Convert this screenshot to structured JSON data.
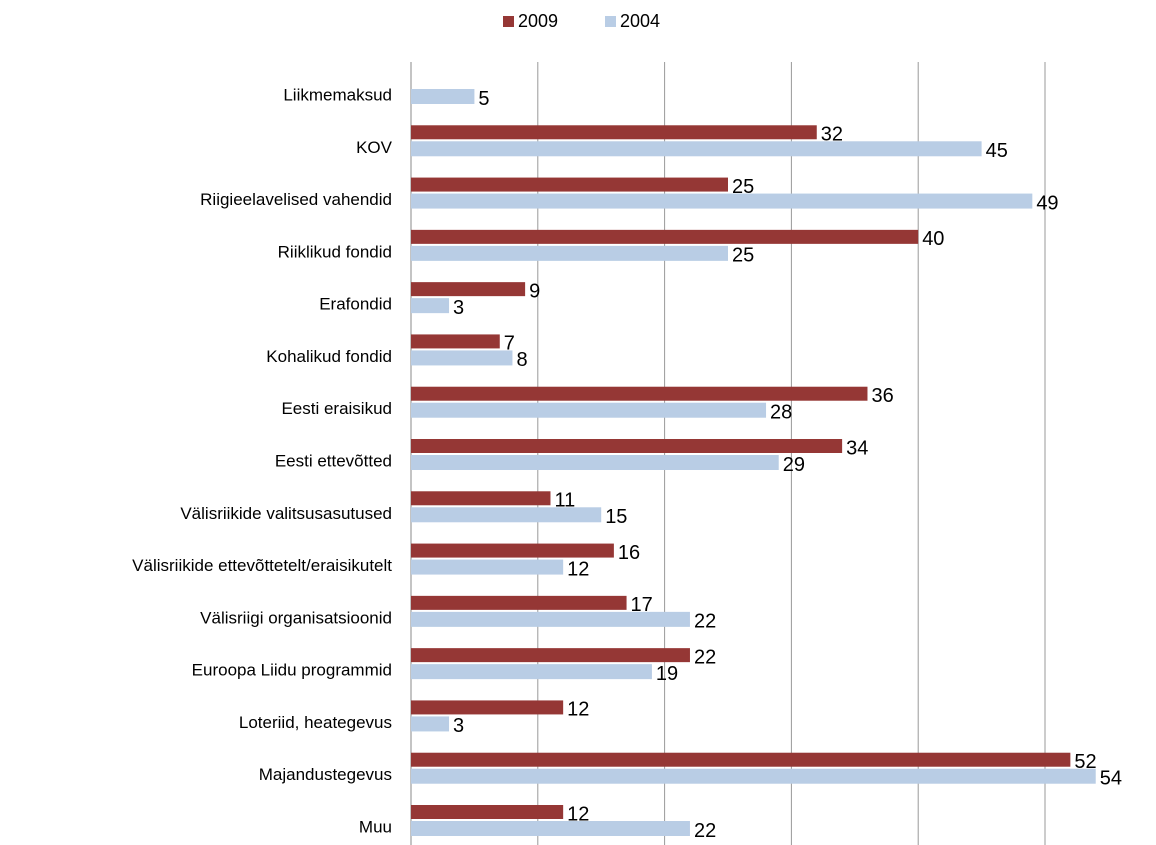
{
  "chart_data": {
    "type": "bar",
    "orientation": "horizontal",
    "categories": [
      "Liikmemaksud",
      "KOV",
      "Riigieelavelised vahendid",
      "Riiklikud fondid",
      "Erafondid",
      "Kohalikud fondid",
      "Eesti eraisikud",
      "Eesti ettevõtted",
      "Välisriikide valitsusasutused",
      "Välisriikide ettevõttetelt/eraisikutelt",
      "Välisriigi organisatsioonid",
      "Euroopa Liidu programmid",
      "Loteriid, heategevus",
      "Majandustegevus",
      "Muu"
    ],
    "series": [
      {
        "name": "2009",
        "color": "#953735",
        "values": [
          null,
          32,
          25,
          40,
          9,
          7,
          36,
          34,
          11,
          16,
          17,
          22,
          12,
          52,
          12
        ]
      },
      {
        "name": "2004",
        "color": "#b9cde5",
        "values": [
          5,
          45,
          49,
          25,
          3,
          8,
          28,
          29,
          15,
          12,
          22,
          19,
          3,
          54,
          22
        ]
      }
    ],
    "xlim": [
      0,
      58
    ],
    "xticks": [
      0,
      10,
      20,
      30,
      40,
      50
    ],
    "grid": true,
    "legend": "top"
  }
}
